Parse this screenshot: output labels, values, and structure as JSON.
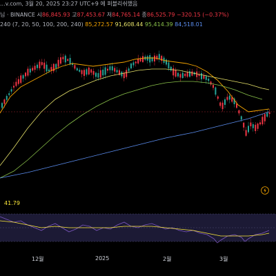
{
  "header": {
    "line1": "...v.com, 3월 20, 2025 23:27 UTC+9 에 퍼블리쉬했음",
    "symbol": "님 · BINANCE",
    "open_label": "시",
    "open_value": "86,845.93",
    "high_label": "고",
    "high_value": "87,453.67",
    "low_label": "저",
    "low_value": "84,765.14",
    "close_label": "종",
    "close_value": "86,525.79",
    "change": "−320.15 (−0.37%)",
    "ma_params": "240 (7, 20, 50, 100, 200, 240)",
    "ma_values": [
      "85,272.57",
      "91,608.44",
      "95,414.39",
      "84,518.01"
    ]
  },
  "rsi": {
    "value": "41.79"
  },
  "x_axis": {
    "labels": [
      "12월",
      "2025",
      "2월",
      "3월"
    ]
  },
  "colors": {
    "up": "#26a69a",
    "down": "#f23645",
    "ma_short": "#f7a600",
    "ma_mid": "#e8e46a",
    "ma_long": "#8bc34a",
    "ma_longest": "#5b8def",
    "rsi_line": "#7e57c2",
    "rsi_signal": "#ffeb3b"
  },
  "icons": {
    "alert": "lightning-icon"
  }
}
